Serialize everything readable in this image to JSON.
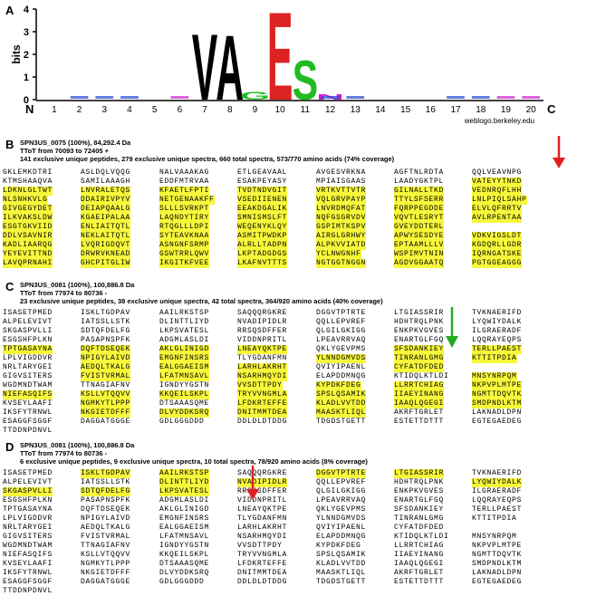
{
  "figure": {
    "panel_a": {
      "letter": "A",
      "y_axis_label": "bits",
      "y_ticks": [
        "0",
        "1",
        "2",
        "3",
        "4"
      ],
      "n_label": "N",
      "c_label": "C",
      "positions": [
        "1",
        "2",
        "3",
        "4",
        "5",
        "6",
        "7",
        "8",
        "9",
        "10",
        "11",
        "12",
        "13",
        "14",
        "15",
        "16",
        "17",
        "18",
        "19",
        "20"
      ],
      "credit": "weblogo.berkeley.edu",
      "logo_letters": [
        {
          "pos": 7,
          "char": "V",
          "color": "#000000",
          "bits": 3.0
        },
        {
          "pos": 8,
          "char": "A",
          "color": "#000000",
          "bits": 2.95
        },
        {
          "pos": 10,
          "char": "E",
          "color": "#dd2222",
          "bits": 4.0
        },
        {
          "pos": 11,
          "char": "S",
          "color": "#22bb22",
          "bits": 1.8
        },
        {
          "pos": 9,
          "char": "G",
          "color": "#22bb22",
          "bits": 0.35
        },
        {
          "pos": 12,
          "char": "N",
          "color": "#cc22cc",
          "bits": 0.25
        }
      ]
    },
    "panel_b": {
      "letter": "B",
      "protein": "SPN3US_0075 (100%), 84,292.4 Da",
      "ttof": "TToT from 70093 to 72405 +",
      "stats": "141 exclusive unique peptides, 279 exclusive unique spectra, 660 total spectra, 573/770 amino acids (74% coverage)",
      "arrow_color": "#e02020",
      "rows": [
        "GKLEMKDTRI ASLDQLVQQG NALVAAAKAG ETLGEAVAAL AVGESVRKNA AGFTNLRDTA QQLVEAVNPG",
        "KTMSHAAQVA SAMILAAAGH EDDFMTRVAA ESAKPEYASY MPIAISGAAS LAADYGKTPL VATEYYTNKD",
        "LDKNLGLTWT LNVRALETQS KFAETLFPTI TVDTNDVGIT VRTKVTTVTR GILNALLTKD VEDNRQFLHH",
        "NLSNHKVLG DDAIRIVPYV NETGENAAKFF VSEDIIENEN VQLGRVPAYP TTYLSFSERR LNLPIQLSAHP",
        "GIVGEGYDET DEIAPQAALG SLLLSVRKPT EEAKDGALIK LNVRDMQFAT FQRPPEGDDE ELVLQFRRTV",
        "ILKVAKSLDW KGAEIPALAA LAQNDYTIRY SMNISMSLFT NQFGSGRVDV VQVTLESRYT AVLRPENTAA",
        "ESGTGKVIID ENLIAITQTL RTQGLLLDPI WEQENYKLQY GSPIMTKSPV GVEYDDTERL",
        "DDLVSAVNIR NEKLAITQTL SYTEAVKNAA ASMITPWDKP AIRGLGRHWY APWYSESDYE VDKVIGSLDT",
        "KADLIAARQG LVQRIGDQVT ASNGNFSRMP ALRLLTADPN ALPKVVIATD EPTAAMLLLV KGDQRLLGDR",
        "YEYEVITTND DRWRVKNEAD GSWTRRLQWV LKPTADGDGS YCLNWGNHF WSPIMVTNIN IQRNGATSKE",
        "LAVQPRNAHI GHCPITGLIW IKGITKFVEE LKAFNVTTTS NGTGGTNGGN AGDVGGAATQ PGTGGEAGGG"
      ]
    },
    "panel_c": {
      "letter": "C",
      "protein": "SPN3US_0081 (100%), 100,886.8 Da",
      "ttof": "TToT from 77974 to 80736 -",
      "stats": "23 exclusive unique peptides, 38 exclusive unique spectra, 42 total spectra, 364/920 amino acids (40% coverage)",
      "arrow_color": "#22aa22",
      "rows": [
        "ISASETPMED ISKLTGDPAV AAILRKSTSP SAQQQRGKRE DGGVTPTRTE LTGIASSRIR TVKNAERIFD",
        "ALPELEVIVT IATSSLLSTK DLINTTLIYD NVADIPIDLR QQLLEPVREF HDHTRQLPNK LYQWIYDALK",
        "SKGASPVLLI SDTQFDELFG LKPSVATESL RRSQSDFFER QLGILGKIGG ENKPKVGVES ILGRAERADF",
        "ESGSHFPLKN PASAPNSPFK ADGMLASLDI VIDDNPRITL LPEAVRRVAQ ENARTGLFGQ LQQRAYEQPS",
        "TPTGASAYNA DQFTDSEQEK AKLGLINIGD LNEAYQKTPE QKLYGEVPMS SFSDANKIEY TERLLPAEST",
        "LPLVIGDDVR NPIGYLAIVD EMGNFINSRS TLYGDANFMN YLNNDGMVDS TINRANLGMG KTTITPDIA",
        "NRLTARYGEI AEDQLTKALG EALGGAEISM LARHLAKRHT QVIYIPAENL CYFATDFDED",
        "GIGVSITERS FVISTVRMAL LFATMNSAVL NSARHMQYDI ELAPDDMNQG KTIDQLKTLDI MNSYNRPQM",
        "WGDMNDTWAM TTNAGIAFNV IGNDYYGSTN VVSDTTPDY KYPDKFDEG LLRRTCHIAG NKPVPLMTPE",
        "NIEFASQIFS KSLLVTQQVV KKQEILSKPL TRYVVNGMLA SPSLQSAMIK IIAEYINANG NGMTTDQVTK",
        "KVSEYLAAFI NGMKYTLPPP DTSAAASQME LFDKRTEFFE KLADLVVTDD IAAQLQGEGI SMDPNDLKTM",
        "IKSFYTRNWL NKGIETDFFF DLVYDDKSRQ DNITMMTDEA MAASKTLIQL AKRFTGRLET LAKNADLDPN",
        "ESAGGFSGGF DAGGATGGGE GDLGGGDDD DDLDLDTDDG TDGDSTGETT ESTETTDTTT EGTEGAEDEG",
        "TTDDNPDNVL"
      ]
    },
    "panel_d": {
      "letter": "D",
      "protein": "SPN3US_0081 (100%), 100,886.8 Da",
      "ttof": "TToT from 77974 to 80736 -",
      "stats": "6 exclusive unique peptides, 9 exclusive unique spectra, 10 total spectra, 78/920 amino acids (8% coverage)",
      "arrow_color": "#e02020",
      "rows": [
        "ISASETPMED ISKLTGDPAV AAILRKSTSP SAQQQRGKRE DGGVTPTRTE LTGIASSRIR TVKNAERIFD",
        "ALPELEVIVT IATSSLLSTK DLINTTLIYD NVADIPIDLR QQLLEPVREF HDHTRQLPNK LYQWIYDALK",
        "SKGASPVLLI SDTQFDELFG LKPSVATESL RRSQSDFFER QLGILGKIGG ENKPKVGVES ILGRAERADF",
        "ESGSHFPLKN PASAPNSPFK ADGMLASLDI VIDDNPRITL LPEAVRRVAQ ENARTGLFGQ LQQRAYEQPS",
        "TPTGASAYNA DQFTDSEQEK AKLGLINIGD LNEAYQKTPE QKLYGEVPMS SFSDANKIEY TERLLPAEST",
        "LPLVIGDDVR NPIGYLAIVD EMGNFINSRS TLYGDANFMN YLNNDGMVDS TINRANLGMG KTTITPDIA",
        "NRLTARYGEI AEDQLTKALG EALGGAEISM LARHLAKRHT QVIYIPAENL CYFATDFDED",
        "GIGVSITERS FVISTVRMAL LFATMNSAVL NSARHMQYDI ELAPDDMNQG KTIDQLKTLDI MNSYNRPQM",
        "WGDMNDTWAM TTNAGIAFNV IGNDYYGSTN VVSDTTPDY KYPDKFDEG LLRRTCHIAG NKPVPLMTPE",
        "NIEFASQIFS KSLLVTQQVV KKQEILSKPL TRYVVNGMLA SPSLQSAMIK IIAEYINANG NGMTTDQVTK",
        "KVSEYLAAFI NGMKYTLPPP DTSAAASQME LFDKRTEFFE KLADLVVTDD IAAQLQGEGI SMDPNDLKTM",
        "IKSFYTRNWL NKGIETDFFF DLVYDDKSRQ DNITMMTDEA MAASKTLIQL AKRFTGRLET LAKNADLDPN",
        "ESAGGFSGGF DAGGATGGGE GDLGGGDDD DDLDLDTDDG TDGDSTGETT ESTETTDTTT EGTEGAEDEG",
        "TTDDNPDNVL"
      ]
    }
  }
}
